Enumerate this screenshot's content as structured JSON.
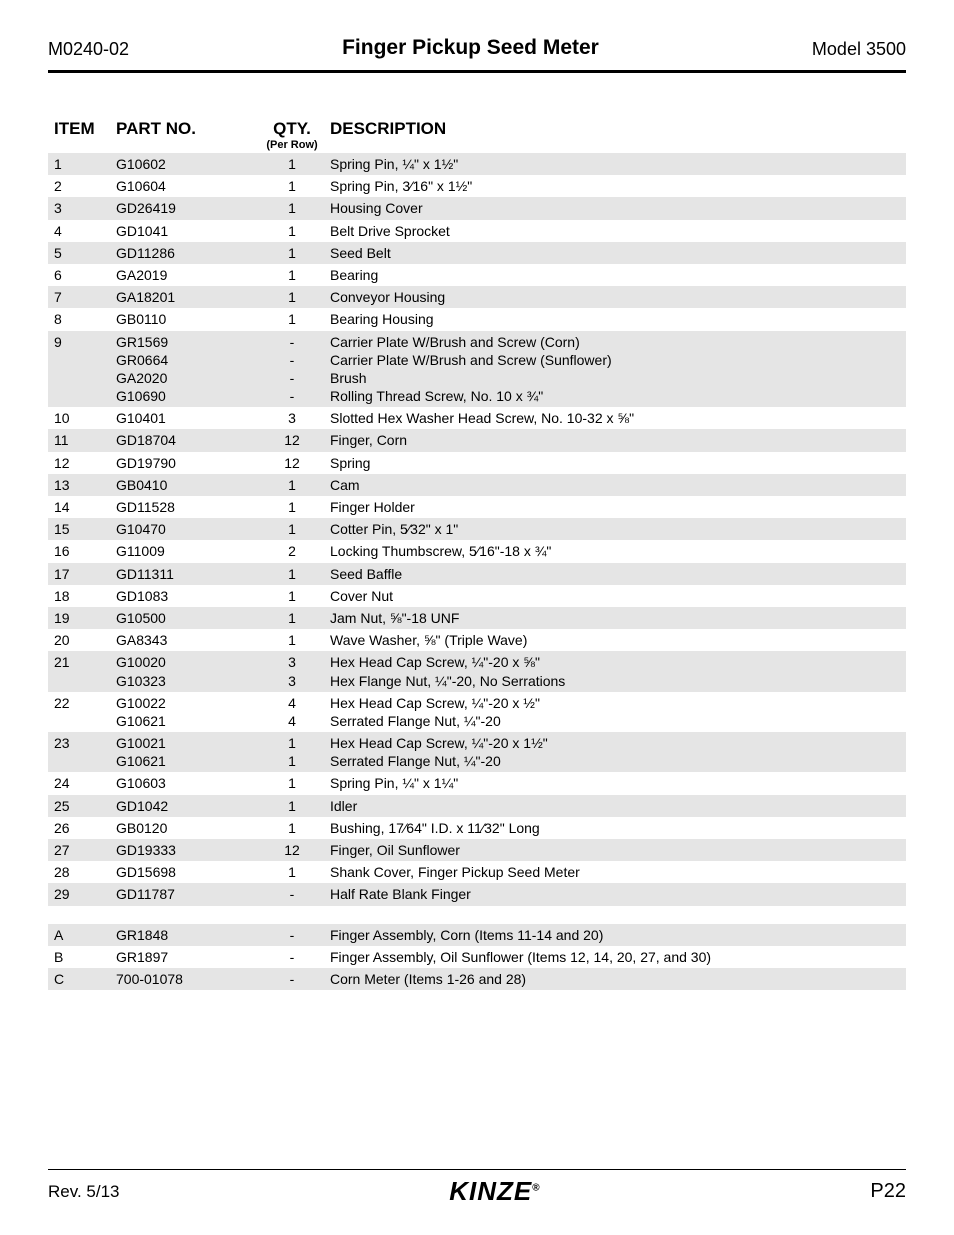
{
  "header": {
    "doc_code": "M0240-02",
    "title": "Finger Pickup Seed Meter",
    "model": "Model 3500"
  },
  "table": {
    "headers": {
      "item": "ITEM",
      "part": "PART NO.",
      "qty": "QTY.",
      "qty_sub": "(Per Row)",
      "desc": "DESCRIPTION"
    },
    "rows": [
      {
        "item": "1",
        "part": "G10602",
        "qty": "1",
        "desc": "Spring Pin, ¼\" x 1½\"",
        "shade": true
      },
      {
        "item": "2",
        "part": "G10604",
        "qty": "1",
        "desc": "Spring Pin, 3⁄16\" x 1½\"",
        "shade": false
      },
      {
        "item": "3",
        "part": "GD26419",
        "qty": "1",
        "desc": "Housing Cover",
        "shade": true
      },
      {
        "item": "4",
        "part": "GD1041",
        "qty": "1",
        "desc": "Belt Drive Sprocket",
        "shade": false
      },
      {
        "item": "5",
        "part": "GD11286",
        "qty": "1",
        "desc": "Seed Belt",
        "shade": true
      },
      {
        "item": "6",
        "part": "GA2019",
        "qty": "1",
        "desc": "Bearing",
        "shade": false
      },
      {
        "item": "7",
        "part": "GA18201",
        "qty": "1",
        "desc": "Conveyor Housing",
        "shade": true
      },
      {
        "item": "8",
        "part": "GB0110",
        "qty": "1",
        "desc": "Bearing Housing",
        "shade": false
      },
      {
        "item": "9",
        "part": "GR1569\nGR0664\nGA2020\nG10690",
        "qty": "-\n-\n-\n-",
        "desc": "Carrier Plate W/Brush and Screw (Corn)\nCarrier Plate W/Brush and Screw (Sunflower)\nBrush\nRolling Thread Screw, No. 10 x ¾\"",
        "shade": true,
        "multi": true
      },
      {
        "item": "10",
        "part": "G10401",
        "qty": "3",
        "desc": "Slotted Hex Washer Head Screw, No. 10-32 x ⅝\"",
        "shade": false
      },
      {
        "item": "11",
        "part": "GD18704",
        "qty": "12",
        "desc": "Finger, Corn",
        "shade": true
      },
      {
        "item": "12",
        "part": "GD19790",
        "qty": "12",
        "desc": "Spring",
        "shade": false
      },
      {
        "item": "13",
        "part": "GB0410",
        "qty": "1",
        "desc": "Cam",
        "shade": true
      },
      {
        "item": "14",
        "part": "GD11528",
        "qty": "1",
        "desc": "Finger Holder",
        "shade": false
      },
      {
        "item": "15",
        "part": "G10470",
        "qty": "1",
        "desc": "Cotter Pin, 5⁄32\" x 1\"",
        "shade": true
      },
      {
        "item": "16",
        "part": "G11009",
        "qty": "2",
        "desc": "Locking Thumbscrew, 5⁄16\"-18 x ¾\"",
        "shade": false
      },
      {
        "item": "17",
        "part": "GD11311",
        "qty": "1",
        "desc": "Seed Baffle",
        "shade": true
      },
      {
        "item": "18",
        "part": "GD1083",
        "qty": "1",
        "desc": "Cover Nut",
        "shade": false
      },
      {
        "item": "19",
        "part": "G10500",
        "qty": "1",
        "desc": "Jam Nut, ⅝\"-18 UNF",
        "shade": true
      },
      {
        "item": "20",
        "part": "GA8343",
        "qty": "1",
        "desc": "Wave Washer, ⅝\" (Triple Wave)",
        "shade": false
      },
      {
        "item": "21",
        "part": "G10020\nG10323",
        "qty": "3\n3",
        "desc": "Hex Head Cap Screw, ¼\"-20 x ⅝\"\nHex Flange Nut, ¼\"-20, No Serrations",
        "shade": true,
        "multi": true
      },
      {
        "item": "22",
        "part": "G10022\nG10621",
        "qty": "4\n4",
        "desc": "Hex Head Cap Screw, ¼\"-20 x ½\"\nSerrated Flange Nut, ¼\"-20",
        "shade": false,
        "multi": true
      },
      {
        "item": "23",
        "part": "G10021\nG10621",
        "qty": "1\n1",
        "desc": "Hex Head Cap Screw, ¼\"-20 x 1½\"\nSerrated Flange Nut, ¼\"-20",
        "shade": true,
        "multi": true
      },
      {
        "item": "24",
        "part": "G10603",
        "qty": "1",
        "desc": "Spring Pin, ¼\" x 1¼\"",
        "shade": false
      },
      {
        "item": "25",
        "part": "GD1042",
        "qty": "1",
        "desc": "Idler",
        "shade": true
      },
      {
        "item": "26",
        "part": "GB0120",
        "qty": "1",
        "desc": "Bushing, 17⁄64\" I.D. x 11⁄32\" Long",
        "shade": false
      },
      {
        "item": "27",
        "part": "GD19333",
        "qty": "12",
        "desc": "Finger, Oil Sunflower",
        "shade": true
      },
      {
        "item": "28",
        "part": "GD15698",
        "qty": "1",
        "desc": "Shank Cover, Finger Pickup Seed Meter",
        "shade": false
      },
      {
        "item": "29",
        "part": "GD11787",
        "qty": "-",
        "desc": "Half Rate Blank Finger",
        "shade": true
      }
    ],
    "assembly_rows": [
      {
        "item": "A",
        "part": "GR1848",
        "qty": "-",
        "desc": "Finger Assembly, Corn (Items 11-14 and 20)",
        "shade": true
      },
      {
        "item": "B",
        "part": "GR1897",
        "qty": "-",
        "desc": "Finger Assembly, Oil Sunflower (Items 12, 14, 20, 27, and 30)",
        "shade": false
      },
      {
        "item": "C",
        "part": "700-01078",
        "qty": "-",
        "desc": "Corn Meter (Items 1-26 and 28)",
        "shade": true
      }
    ]
  },
  "footer": {
    "rev": "Rev. 5/13",
    "logo_text": "KINZE",
    "page": "P22"
  }
}
